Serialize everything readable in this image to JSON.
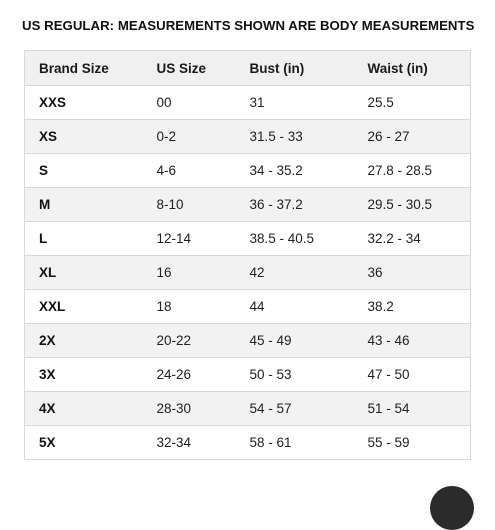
{
  "title": "US REGULAR: MEASUREMENTS SHOWN ARE BODY MEASUREMENTS",
  "table": {
    "headers": [
      "Brand Size",
      "US Size",
      "Bust (in)",
      "Waist (in)"
    ],
    "rows": [
      [
        "XXS",
        "00",
        "31",
        "25.5"
      ],
      [
        "XS",
        "0-2",
        "31.5 - 33",
        "26 - 27"
      ],
      [
        "S",
        "4-6",
        "34 - 35.2",
        "27.8 - 28.5"
      ],
      [
        "M",
        "8-10",
        "36 - 37.2",
        "29.5 - 30.5"
      ],
      [
        "L",
        "12-14",
        "38.5 - 40.5",
        "32.2 - 34"
      ],
      [
        "XL",
        "16",
        "42",
        "36"
      ],
      [
        "XXL",
        "18",
        "44",
        "38.2"
      ],
      [
        "2X",
        "20-22",
        "45 - 49",
        "43 - 46"
      ],
      [
        "3X",
        "24-26",
        "50 - 53",
        "47 - 50"
      ],
      [
        "4X",
        "28-30",
        "54 - 57",
        "51 - 54"
      ],
      [
        "5X",
        "32-34",
        "58 - 61",
        "55 - 59"
      ]
    ]
  },
  "colors": {
    "header_bg": "#f0f0f0",
    "stripe_bg": "#f2f2f2",
    "border": "#d9d9d9"
  }
}
